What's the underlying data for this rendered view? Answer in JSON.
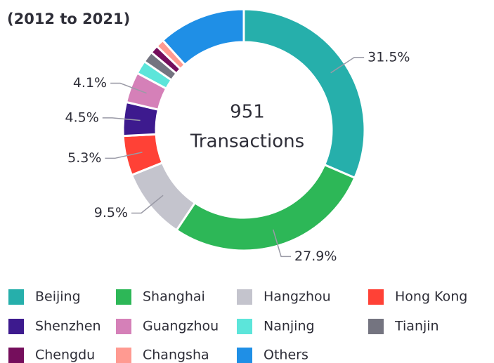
{
  "chart_data": {
    "type": "donut",
    "subtitle": "(2012 to 2021)",
    "center_value": "951",
    "center_label": "Transactions",
    "categories": [
      "Beijing",
      "Shanghai",
      "Hangzhou",
      "Hong Kong",
      "Shenzhen",
      "Guangzhou",
      "Nanjing",
      "Tianjin",
      "Chengdu",
      "Changsha",
      "Others"
    ],
    "values": [
      31.5,
      27.9,
      9.5,
      5.3,
      4.5,
      4.1,
      1.8,
      1.5,
      1.1,
      1.1,
      11.7
    ],
    "value_labels": [
      "31.5%",
      "27.9%",
      "9.5%",
      "5.3%",
      "4.5%",
      "4.1%",
      null,
      null,
      null,
      null,
      null
    ],
    "colors": [
      "#26afab",
      "#2db757",
      "#c4c4cd",
      "#ff4136",
      "#3d1a8e",
      "#d580b8",
      "#5ce5da",
      "#747480",
      "#750e5c",
      "#ff9a91",
      "#1f8fe6"
    ],
    "legend": "bottom"
  }
}
